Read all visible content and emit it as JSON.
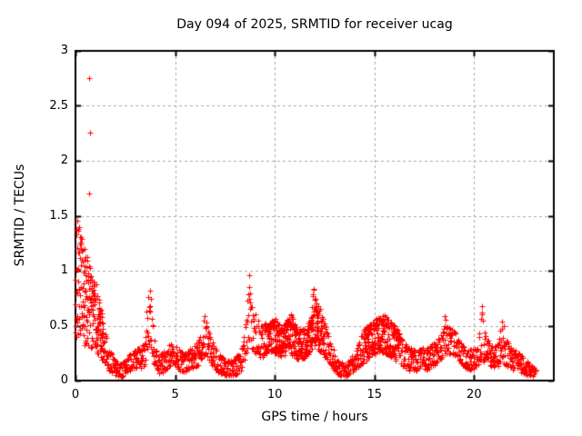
{
  "figure": {
    "background": "#ffffff"
  },
  "chart_data": {
    "type": "scatter",
    "title": "Day 094 of 2025, SRMTID for receiver ucag",
    "xlabel": "GPS time / hours",
    "ylabel": "SRMTID / TECUs",
    "xlim": [
      0,
      24
    ],
    "ylim": [
      0,
      3
    ],
    "xticks": [
      0,
      5,
      10,
      15,
      20
    ],
    "xtick_labels": [
      "0",
      "5",
      "10",
      "15",
      "20"
    ],
    "yticks": [
      0,
      0.5,
      1,
      1.5,
      2,
      2.5,
      3
    ],
    "ytick_labels": [
      "0",
      "0.5",
      "1",
      "1.5",
      "2",
      "2.5",
      "3"
    ],
    "grid": true,
    "grid_color": "#a8a8a8",
    "axis_color": "#000000",
    "marker": "plus",
    "marker_color": "#ff0000",
    "marker_size": 7,
    "series_name": "SRMTID",
    "x_start": 0,
    "x_end": 23.1,
    "points_per_hour": 72,
    "approx_point_count": 1900,
    "outlier_points": [
      [
        0.69,
        2.75
      ],
      [
        0.73,
        2.26
      ],
      [
        0.7,
        1.7
      ]
    ],
    "dense_ranges": [
      [
        0.0,
        1.4
      ],
      [
        9.5,
        12.5
      ],
      [
        14.4,
        16.2
      ]
    ],
    "envelope_lo_hi": [
      [
        0.0,
        0.35,
        1.5
      ],
      [
        0.1,
        0.4,
        1.5
      ],
      [
        0.25,
        0.35,
        1.35
      ],
      [
        0.4,
        0.32,
        1.25
      ],
      [
        0.55,
        0.3,
        1.15
      ],
      [
        0.7,
        0.3,
        1.1
      ],
      [
        0.85,
        0.28,
        1.0
      ],
      [
        1.0,
        0.26,
        0.9
      ],
      [
        1.15,
        0.24,
        0.78
      ],
      [
        1.3,
        0.2,
        0.62
      ],
      [
        1.5,
        0.14,
        0.45
      ],
      [
        1.7,
        0.09,
        0.3
      ],
      [
        1.9,
        0.06,
        0.22
      ],
      [
        2.1,
        0.04,
        0.16
      ],
      [
        2.3,
        0.03,
        0.15
      ],
      [
        2.5,
        0.06,
        0.19
      ],
      [
        2.7,
        0.09,
        0.24
      ],
      [
        2.9,
        0.11,
        0.27
      ],
      [
        3.1,
        0.12,
        0.3
      ],
      [
        3.3,
        0.11,
        0.28
      ],
      [
        3.5,
        0.15,
        0.4
      ],
      [
        3.65,
        0.28,
        0.9
      ],
      [
        3.75,
        0.3,
        0.85
      ],
      [
        3.85,
        0.22,
        0.6
      ],
      [
        4.0,
        0.1,
        0.32
      ],
      [
        4.2,
        0.06,
        0.22
      ],
      [
        4.4,
        0.08,
        0.26
      ],
      [
        4.65,
        0.12,
        0.32
      ],
      [
        4.9,
        0.15,
        0.38
      ],
      [
        5.05,
        0.14,
        0.36
      ],
      [
        5.25,
        0.08,
        0.27
      ],
      [
        5.5,
        0.08,
        0.25
      ],
      [
        5.75,
        0.1,
        0.29
      ],
      [
        6.0,
        0.12,
        0.32
      ],
      [
        6.25,
        0.16,
        0.42
      ],
      [
        6.45,
        0.24,
        0.61
      ],
      [
        6.65,
        0.18,
        0.46
      ],
      [
        6.9,
        0.13,
        0.36
      ],
      [
        7.15,
        0.08,
        0.27
      ],
      [
        7.4,
        0.05,
        0.21
      ],
      [
        7.7,
        0.04,
        0.18
      ],
      [
        8.0,
        0.05,
        0.2
      ],
      [
        8.3,
        0.09,
        0.28
      ],
      [
        8.55,
        0.22,
        0.55
      ],
      [
        8.7,
        0.35,
        0.98
      ],
      [
        8.85,
        0.28,
        0.7
      ],
      [
        9.1,
        0.24,
        0.58
      ],
      [
        9.35,
        0.2,
        0.5
      ],
      [
        9.6,
        0.24,
        0.53
      ],
      [
        9.85,
        0.26,
        0.58
      ],
      [
        10.1,
        0.24,
        0.55
      ],
      [
        10.35,
        0.22,
        0.5
      ],
      [
        10.6,
        0.24,
        0.55
      ],
      [
        10.85,
        0.22,
        0.62
      ],
      [
        11.1,
        0.2,
        0.5
      ],
      [
        11.35,
        0.2,
        0.47
      ],
      [
        11.6,
        0.22,
        0.5
      ],
      [
        11.8,
        0.26,
        0.58
      ],
      [
        11.95,
        0.35,
        0.9
      ],
      [
        12.1,
        0.28,
        0.7
      ],
      [
        12.3,
        0.25,
        0.66
      ],
      [
        12.55,
        0.2,
        0.48
      ],
      [
        12.8,
        0.14,
        0.34
      ],
      [
        13.05,
        0.08,
        0.24
      ],
      [
        13.3,
        0.04,
        0.17
      ],
      [
        13.55,
        0.03,
        0.15
      ],
      [
        13.8,
        0.06,
        0.2
      ],
      [
        14.05,
        0.1,
        0.28
      ],
      [
        14.3,
        0.14,
        0.4
      ],
      [
        14.55,
        0.18,
        0.48
      ],
      [
        14.8,
        0.22,
        0.52
      ],
      [
        15.05,
        0.25,
        0.57
      ],
      [
        15.3,
        0.26,
        0.6
      ],
      [
        15.55,
        0.25,
        0.6
      ],
      [
        15.8,
        0.22,
        0.54
      ],
      [
        16.05,
        0.18,
        0.5
      ],
      [
        16.3,
        0.14,
        0.4
      ],
      [
        16.55,
        0.11,
        0.34
      ],
      [
        16.8,
        0.09,
        0.3
      ],
      [
        17.1,
        0.08,
        0.27
      ],
      [
        17.4,
        0.1,
        0.3
      ],
      [
        17.7,
        0.1,
        0.31
      ],
      [
        18.0,
        0.13,
        0.35
      ],
      [
        18.3,
        0.18,
        0.42
      ],
      [
        18.42,
        0.22,
        0.48
      ],
      [
        18.5,
        0.28,
        0.75
      ],
      [
        18.6,
        0.24,
        0.5
      ],
      [
        18.85,
        0.24,
        0.48
      ],
      [
        19.1,
        0.21,
        0.43
      ],
      [
        19.35,
        0.15,
        0.35
      ],
      [
        19.6,
        0.11,
        0.3
      ],
      [
        19.85,
        0.1,
        0.28
      ],
      [
        20.1,
        0.11,
        0.3
      ],
      [
        20.3,
        0.16,
        0.45
      ],
      [
        20.4,
        0.2,
        0.74
      ],
      [
        20.5,
        0.16,
        0.45
      ],
      [
        20.75,
        0.14,
        0.36
      ],
      [
        21.0,
        0.12,
        0.32
      ],
      [
        21.25,
        0.13,
        0.36
      ],
      [
        21.4,
        0.18,
        0.63
      ],
      [
        21.55,
        0.14,
        0.42
      ],
      [
        21.8,
        0.11,
        0.31
      ],
      [
        22.05,
        0.09,
        0.28
      ],
      [
        22.3,
        0.08,
        0.25
      ],
      [
        22.55,
        0.06,
        0.2
      ],
      [
        22.8,
        0.04,
        0.15
      ],
      [
        23.1,
        0.03,
        0.11
      ]
    ]
  }
}
